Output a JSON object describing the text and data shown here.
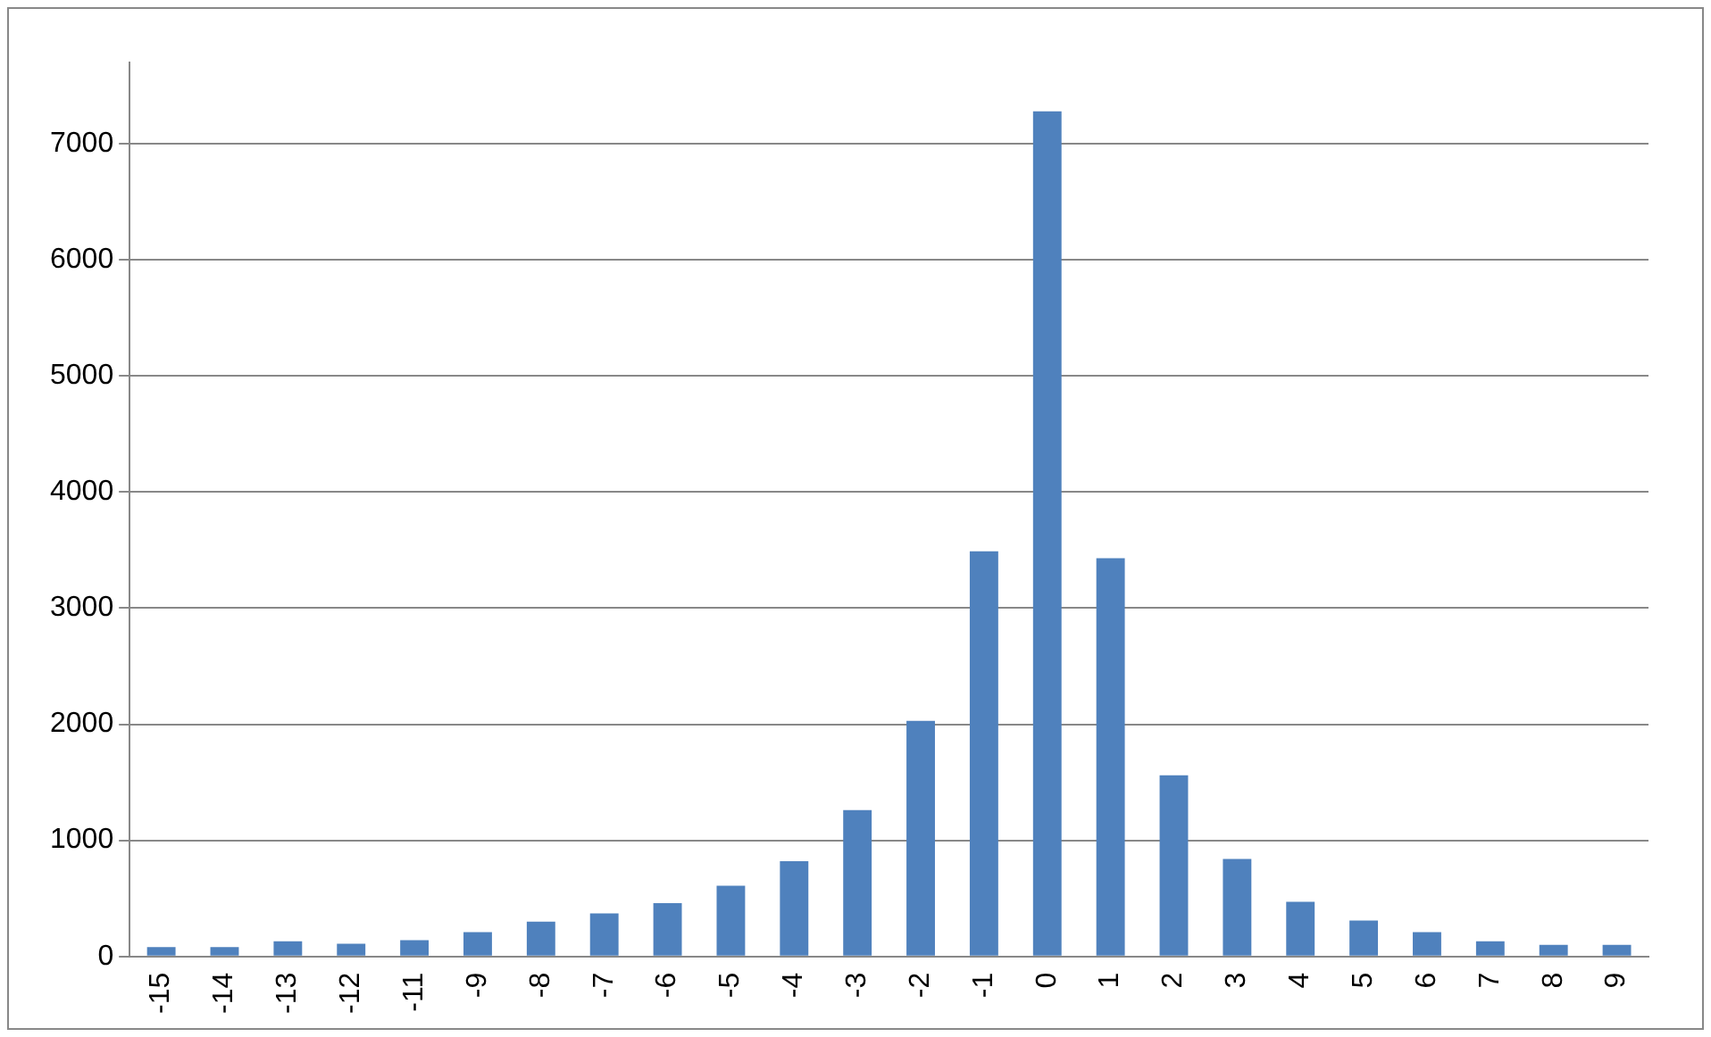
{
  "chart_data": {
    "type": "bar",
    "categories": [
      "-15",
      "-14",
      "-13",
      "-12",
      "-11",
      "-9",
      "-8",
      "-7",
      "-6",
      "-5",
      "-4",
      "-3",
      "-2",
      "-1",
      "0",
      "1",
      "2",
      "3",
      "4",
      "5",
      "6",
      "7",
      "8",
      "9"
    ],
    "series": [
      {
        "color": "#4f81bd",
        "values": [
          80,
          80,
          130,
          110,
          140,
          210,
          300,
          370,
          460,
          610,
          820,
          1260,
          2030,
          3490,
          7280,
          3430,
          1560,
          840,
          470,
          310,
          210,
          130,
          100,
          100
        ]
      }
    ],
    "ylim": [
      0,
      7700
    ],
    "yticks": [
      0,
      1000,
      2000,
      3000,
      4000,
      5000,
      6000,
      7000
    ],
    "grid": "y",
    "legend": false
  }
}
